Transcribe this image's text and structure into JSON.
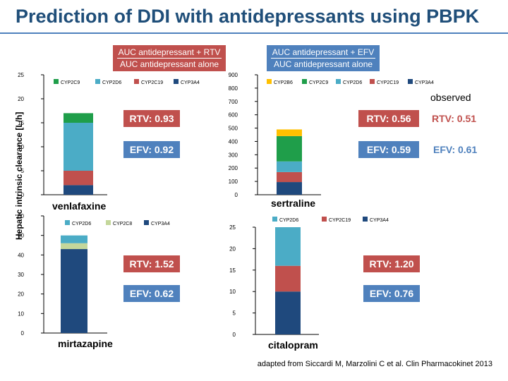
{
  "title": "Prediction of DDI with antidepressants using PBPK",
  "y_axis_label": "Hepatic intrinsic clearance [L/h]",
  "header_rtv": {
    "numerator": "AUC antidepressant + RTV",
    "denominator": "AUC antidepressant alone"
  },
  "header_efv": {
    "numerator": "AUC antidepressant + EFV",
    "denominator": "AUC antidepressant alone"
  },
  "observed_label": "observed",
  "colors": {
    "CYP2C9": "#1f9e4a",
    "CYP2D6": "#4bacc6",
    "CYP2C19": "#c0504d",
    "CYP3A4": "#1f497d",
    "CYP2B6": "#ffc000",
    "CYP2C8": "#c4d79b",
    "rtv": "#c0504d",
    "efv": "#4f81bd"
  },
  "panels": [
    {
      "drug": "venlafaxine",
      "predicted_rtv": "RTV: 0.93",
      "predicted_efv": "EFV: 0.92",
      "observed_rtv": "",
      "observed_efv": ""
    },
    {
      "drug": "sertraline",
      "predicted_rtv": "RTV: 0.56",
      "predicted_efv": "EFV: 0.59",
      "observed_rtv": "RTV: 0.51",
      "observed_efv": "EFV: 0.61"
    },
    {
      "drug": "mirtazapine",
      "predicted_rtv": "RTV: 1.52",
      "predicted_efv": "EFV: 0.62",
      "observed_rtv": "",
      "observed_efv": ""
    },
    {
      "drug": "citalopram",
      "predicted_rtv": "RTV: 1.20",
      "predicted_efv": "EFV: 0.76",
      "observed_rtv": "",
      "observed_efv": ""
    }
  ],
  "source_note": "adapted from Siccardi M, Marzolini C et al. Clin Pharmacokinet 2013",
  "chart_data": [
    {
      "type": "bar",
      "stacked": true,
      "title": "venlafaxine",
      "ylabel": "Hepatic intrinsic clearance [L/h]",
      "ylim": [
        0,
        25
      ],
      "ticks": [
        0,
        5,
        10,
        15,
        20,
        25
      ],
      "legend": [
        "CYP2C9",
        "CYP2D6",
        "CYP2C19",
        "CYP3A4"
      ],
      "series": [
        {
          "name": "CYP3A4",
          "value": 2
        },
        {
          "name": "CYP2C19",
          "value": 3
        },
        {
          "name": "CYP2D6",
          "value": 10
        },
        {
          "name": "CYP2C9",
          "value": 2
        }
      ]
    },
    {
      "type": "bar",
      "stacked": true,
      "title": "sertraline",
      "ylim": [
        0,
        900
      ],
      "ticks": [
        0,
        100,
        200,
        300,
        400,
        500,
        600,
        700,
        800,
        900
      ],
      "legend": [
        "CYP2B6",
        "CYP2C9",
        "CYP2D6",
        "CYP2C19",
        "CYP3A4"
      ],
      "series": [
        {
          "name": "CYP3A4",
          "value": 95
        },
        {
          "name": "CYP2C19",
          "value": 75
        },
        {
          "name": "CYP2D6",
          "value": 80
        },
        {
          "name": "CYP2C9",
          "value": 190
        },
        {
          "name": "CYP2B6",
          "value": 50
        }
      ]
    },
    {
      "type": "bar",
      "stacked": true,
      "title": "mirtazapine",
      "ylim": [
        0,
        60
      ],
      "ticks": [
        0,
        10,
        20,
        30,
        40,
        50,
        60
      ],
      "legend": [
        "CYP2D6",
        "CYP2C8",
        "CYP3A4"
      ],
      "series": [
        {
          "name": "CYP3A4",
          "value": 43
        },
        {
          "name": "CYP2C8",
          "value": 3
        },
        {
          "name": "CYP2D6",
          "value": 4
        }
      ]
    },
    {
      "type": "bar",
      "stacked": true,
      "title": "citalopram",
      "ylim": [
        0,
        25
      ],
      "ticks": [
        0,
        5,
        10,
        15,
        20,
        25
      ],
      "legend": [
        "CYP2D6",
        "CYP2C19",
        "CYP3A4"
      ],
      "series": [
        {
          "name": "CYP3A4",
          "value": 10
        },
        {
          "name": "CYP2C19",
          "value": 6
        },
        {
          "name": "CYP2D6",
          "value": 9
        }
      ]
    }
  ]
}
